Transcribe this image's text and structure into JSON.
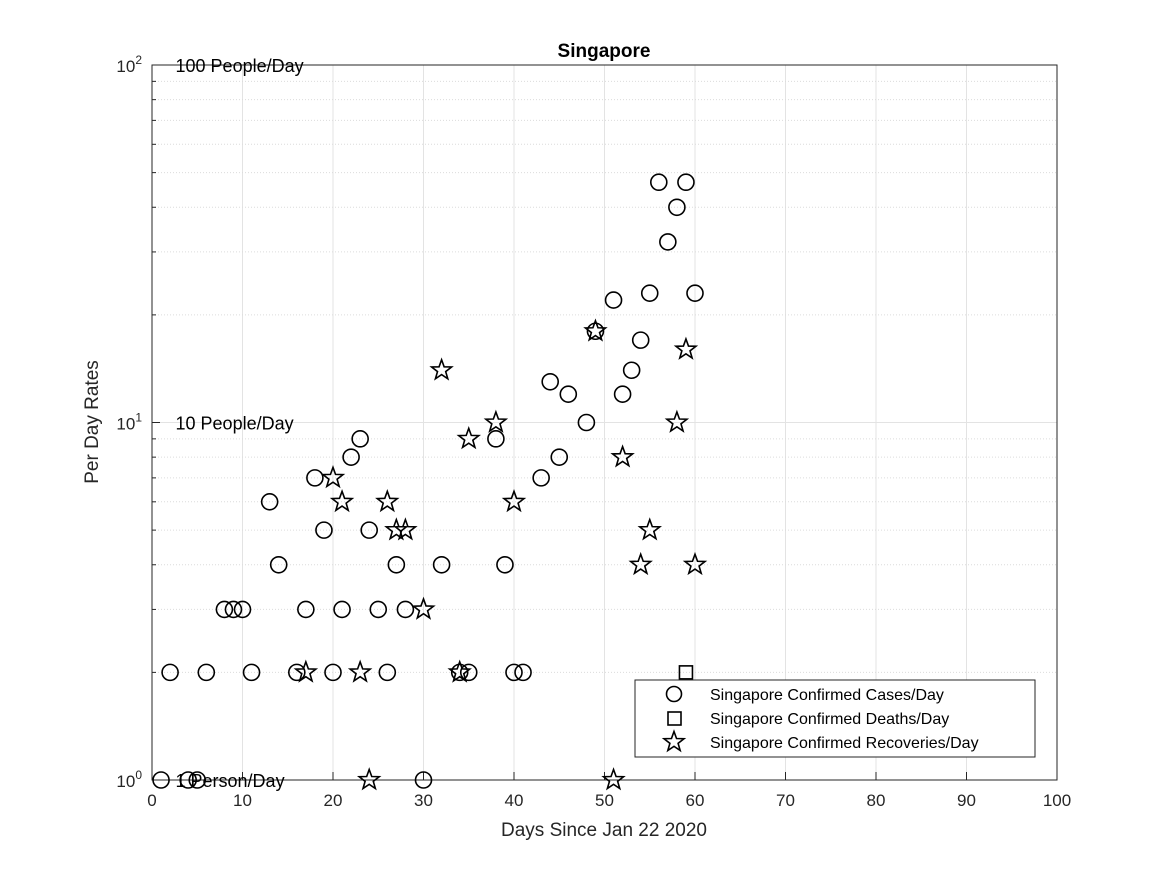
{
  "chart_data": {
    "type": "scatter",
    "title": "Singapore",
    "xlabel": "Days Since Jan 22 2020",
    "ylabel": "Per Day Rates",
    "xlim": [
      0,
      100
    ],
    "ylim": [
      1,
      100
    ],
    "yscale": "log",
    "grid": true,
    "legend_position": "bottom-right",
    "x_ticks": [
      "0",
      "10",
      "20",
      "30",
      "40",
      "50",
      "60",
      "70",
      "80",
      "90",
      "100"
    ],
    "y_ticks": [
      {
        "base": "10",
        "exp": "0"
      },
      {
        "base": "10",
        "exp": "1"
      },
      {
        "base": "10",
        "exp": "2"
      }
    ],
    "annotations": [
      {
        "text": "100 People/Day",
        "y": 100
      },
      {
        "text": "10 People/Day",
        "y": 10
      },
      {
        "text": "1 Person/Day",
        "y": 1
      }
    ],
    "series": [
      {
        "name": "Singapore Confirmed Cases/Day",
        "marker": "circle",
        "points": [
          [
            1,
            1
          ],
          [
            2,
            2
          ],
          [
            4,
            1
          ],
          [
            5,
            1
          ],
          [
            6,
            2
          ],
          [
            8,
            3
          ],
          [
            9,
            3
          ],
          [
            10,
            3
          ],
          [
            11,
            2
          ],
          [
            13,
            6
          ],
          [
            14,
            4
          ],
          [
            16,
            2
          ],
          [
            17,
            3
          ],
          [
            18,
            7
          ],
          [
            19,
            5
          ],
          [
            20,
            2
          ],
          [
            21,
            3
          ],
          [
            22,
            8
          ],
          [
            23,
            9
          ],
          [
            24,
            5
          ],
          [
            25,
            3
          ],
          [
            26,
            2
          ],
          [
            27,
            4
          ],
          [
            28,
            3
          ],
          [
            30,
            1
          ],
          [
            32,
            4
          ],
          [
            34,
            2
          ],
          [
            35,
            2
          ],
          [
            38,
            9
          ],
          [
            39,
            4
          ],
          [
            40,
            2
          ],
          [
            41,
            2
          ],
          [
            43,
            7
          ],
          [
            44,
            13
          ],
          [
            45,
            8
          ],
          [
            46,
            12
          ],
          [
            48,
            10
          ],
          [
            49,
            18
          ],
          [
            51,
            22
          ],
          [
            52,
            12
          ],
          [
            53,
            14
          ],
          [
            54,
            17
          ],
          [
            55,
            23
          ],
          [
            56,
            47
          ],
          [
            57,
            32
          ],
          [
            58,
            40
          ],
          [
            59,
            47
          ],
          [
            60,
            23
          ]
        ]
      },
      {
        "name": "Singapore Confirmed Deaths/Day",
        "marker": "square",
        "points": [
          [
            59,
            2
          ]
        ]
      },
      {
        "name": "Singapore Confirmed Recoveries/Day",
        "marker": "star",
        "points": [
          [
            17,
            2
          ],
          [
            20,
            7
          ],
          [
            21,
            6
          ],
          [
            23,
            2
          ],
          [
            24,
            1
          ],
          [
            26,
            6
          ],
          [
            27,
            5
          ],
          [
            28,
            5
          ],
          [
            30,
            3
          ],
          [
            32,
            14
          ],
          [
            34,
            2
          ],
          [
            35,
            9
          ],
          [
            38,
            10
          ],
          [
            40,
            6
          ],
          [
            49,
            18
          ],
          [
            51,
            1
          ],
          [
            52,
            8
          ],
          [
            54,
            4
          ],
          [
            55,
            5
          ],
          [
            58,
            10
          ],
          [
            59,
            16
          ],
          [
            60,
            4
          ]
        ]
      }
    ]
  }
}
